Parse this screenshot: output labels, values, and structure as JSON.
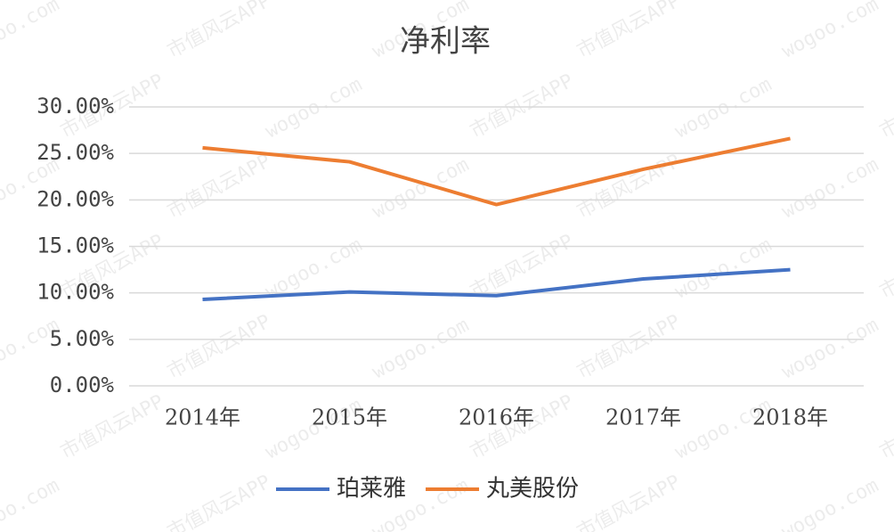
{
  "chart_data": {
    "type": "line",
    "title": "净利率",
    "categories": [
      "2014年",
      "2015年",
      "2016年",
      "2017年",
      "2018年"
    ],
    "series": [
      {
        "name": "珀莱雅",
        "color": "#4472c4",
        "values": [
          9.3,
          10.1,
          9.7,
          11.5,
          12.5
        ]
      },
      {
        "name": "丸美股份",
        "color": "#ed7d31",
        "values": [
          25.6,
          24.1,
          19.5,
          23.3,
          26.6
        ]
      }
    ],
    "ylim": [
      0,
      30
    ],
    "yticks": [
      {
        "value": 0,
        "label": "0.00%"
      },
      {
        "value": 5,
        "label": "5.00%"
      },
      {
        "value": 10,
        "label": "10.00%"
      },
      {
        "value": 15,
        "label": "15.00%"
      },
      {
        "value": 20,
        "label": "20.00%"
      },
      {
        "value": 25,
        "label": "25.00%"
      },
      {
        "value": 30,
        "label": "30.00%"
      }
    ],
    "grid": true,
    "legend": "bottom",
    "watermark": [
      "wogoo.com",
      "市值风云APP"
    ]
  }
}
